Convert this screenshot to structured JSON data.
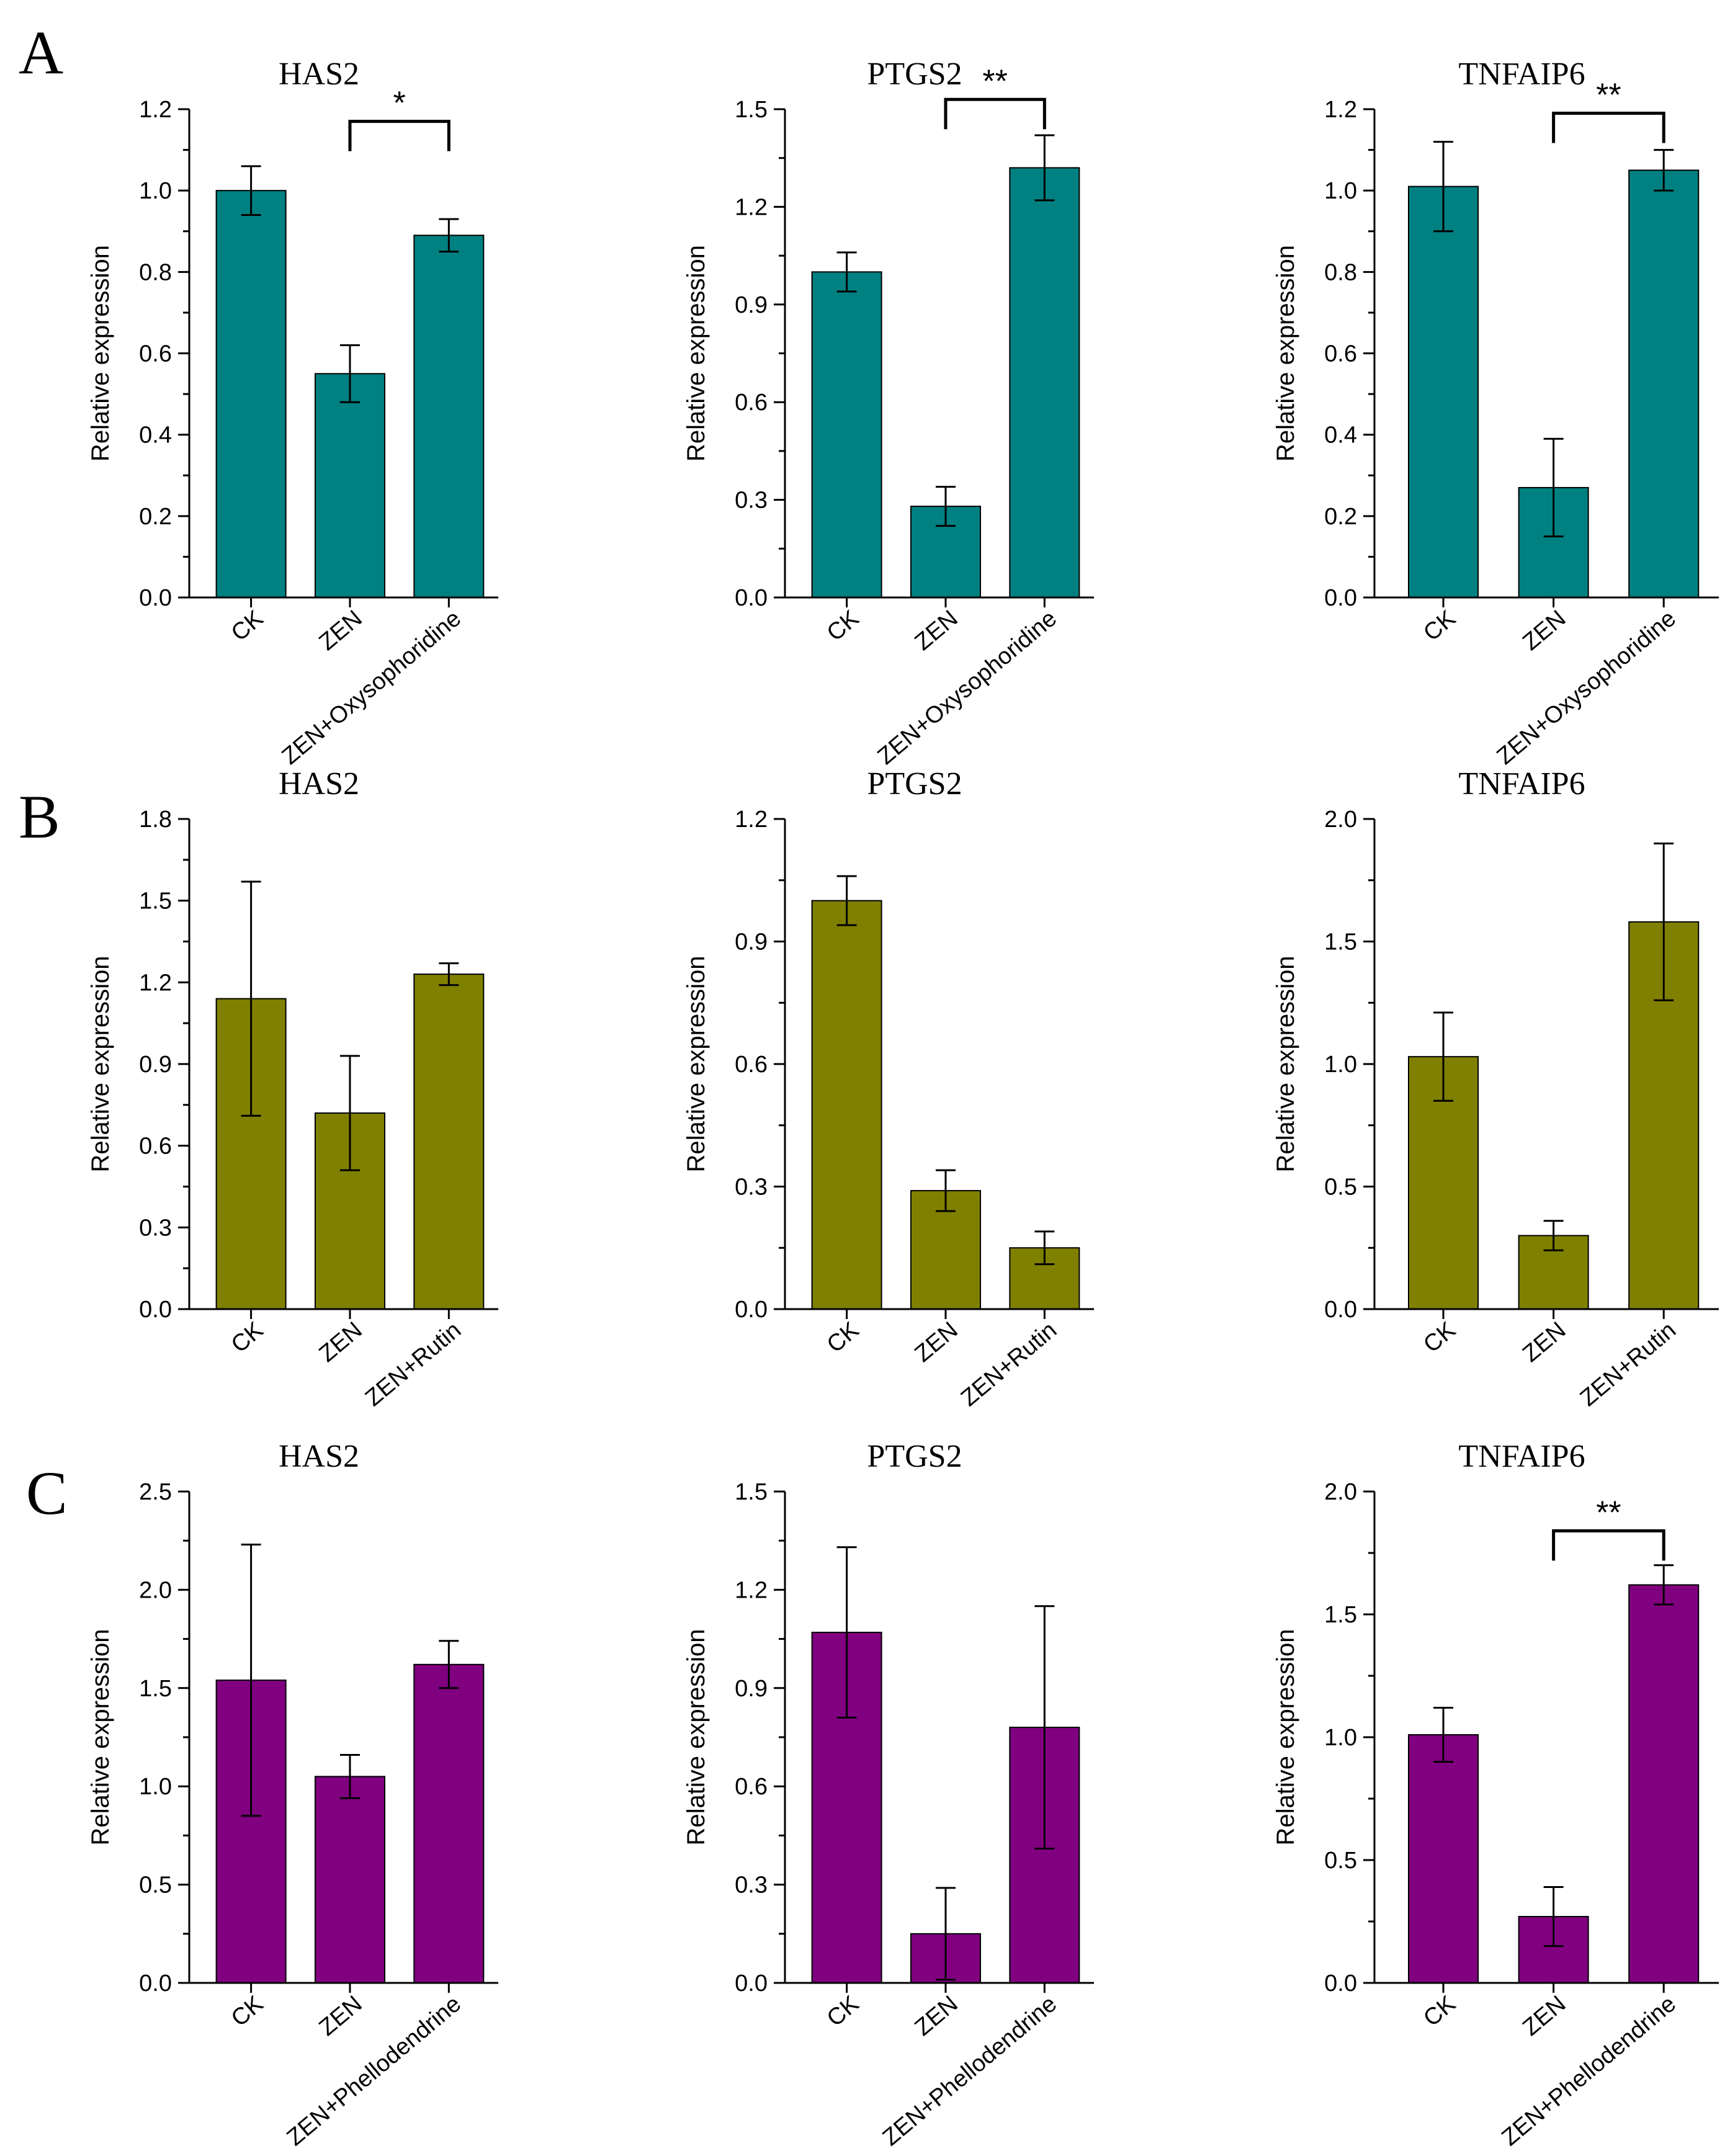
{
  "figure": {
    "panels": [
      {
        "label": "A",
        "color": "#008080"
      },
      {
        "label": "B",
        "color": "#808000"
      },
      {
        "label": "C",
        "color": "#800080"
      }
    ]
  },
  "chart_data": [
    {
      "type": "bar",
      "panel": "A",
      "title": "HAS2",
      "ylabel": "Relative expression",
      "categories": [
        "CK",
        "ZEN",
        "ZEN+Oxysophoridine"
      ],
      "values": [
        1.0,
        0.55,
        0.89
      ],
      "errors": [
        0.06,
        0.07,
        0.04
      ],
      "ylim": [
        0,
        1.2
      ],
      "yticks": [
        "0.0",
        "0.2",
        "0.4",
        "0.6",
        "0.8",
        "1.0",
        "1.2"
      ],
      "significance": {
        "from": 1,
        "to": 2,
        "label": "*",
        "level": 1.17
      }
    },
    {
      "type": "bar",
      "panel": "A",
      "title": "PTGS2",
      "ylabel": "Relative expression",
      "categories": [
        "CK",
        "ZEN",
        "ZEN+Oxysophoridine"
      ],
      "values": [
        1.0,
        0.28,
        1.32
      ],
      "errors": [
        0.06,
        0.06,
        0.1
      ],
      "ylim": [
        0,
        1.5
      ],
      "yticks": [
        "0.0",
        "0.3",
        "0.6",
        "0.9",
        "1.2",
        "1.5"
      ],
      "significance": {
        "from": 1,
        "to": 2,
        "label": "**",
        "level": 1.53
      }
    },
    {
      "type": "bar",
      "panel": "A",
      "title": "TNFAIP6",
      "ylabel": "Relative expression",
      "categories": [
        "CK",
        "ZEN",
        "ZEN+Oxysophoridine"
      ],
      "values": [
        1.01,
        0.27,
        1.05
      ],
      "errors": [
        0.11,
        0.12,
        0.05
      ],
      "ylim": [
        0,
        1.2
      ],
      "yticks": [
        "0.0",
        "0.2",
        "0.4",
        "0.6",
        "0.8",
        "1.0",
        "1.2"
      ],
      "significance": {
        "from": 1,
        "to": 2,
        "label": "**",
        "level": 1.19
      }
    },
    {
      "type": "bar",
      "panel": "B",
      "title": "HAS2",
      "ylabel": "Relative expression",
      "categories": [
        "CK",
        "ZEN",
        "ZEN+Rutin"
      ],
      "values": [
        1.14,
        0.72,
        1.23
      ],
      "errors": [
        0.43,
        0.21,
        0.04
      ],
      "ylim": [
        0,
        1.8
      ],
      "yticks": [
        "0.0",
        "0.3",
        "0.6",
        "0.9",
        "1.2",
        "1.5",
        "1.8"
      ]
    },
    {
      "type": "bar",
      "panel": "B",
      "title": "PTGS2",
      "ylabel": "Relative expression",
      "categories": [
        "CK",
        "ZEN",
        "ZEN+Rutin"
      ],
      "values": [
        1.0,
        0.29,
        0.15
      ],
      "errors": [
        0.06,
        0.05,
        0.04
      ],
      "ylim": [
        0,
        1.2
      ],
      "yticks": [
        "0.0",
        "0.3",
        "0.6",
        "0.9",
        "1.2"
      ]
    },
    {
      "type": "bar",
      "panel": "B",
      "title": "TNFAIP6",
      "ylabel": "Relative expression",
      "categories": [
        "CK",
        "ZEN",
        "ZEN+Rutin"
      ],
      "values": [
        1.03,
        0.3,
        1.58
      ],
      "errors": [
        0.18,
        0.06,
        0.32
      ],
      "ylim": [
        0,
        2.0
      ],
      "yticks": [
        "0.0",
        "0.5",
        "1.0",
        "1.5",
        "2.0"
      ]
    },
    {
      "type": "bar",
      "panel": "C",
      "title": "HAS2",
      "ylabel": "Relative expression",
      "categories": [
        "CK",
        "ZEN",
        "ZEN+Phellodendrine"
      ],
      "values": [
        1.54,
        1.05,
        1.62
      ],
      "errors": [
        0.69,
        0.11,
        0.12
      ],
      "ylim": [
        0,
        2.5
      ],
      "yticks": [
        "0.0",
        "0.5",
        "1.0",
        "1.5",
        "2.0",
        "2.5"
      ]
    },
    {
      "type": "bar",
      "panel": "C",
      "title": "PTGS2",
      "ylabel": "Relative expression",
      "categories": [
        "CK",
        "ZEN",
        "ZEN+Phellodendrine"
      ],
      "values": [
        1.07,
        0.15,
        0.78
      ],
      "errors": [
        0.26,
        0.14,
        0.37
      ],
      "ylim": [
        0,
        1.5
      ],
      "yticks": [
        "0.0",
        "0.3",
        "0.6",
        "0.9",
        "1.2",
        "1.5"
      ]
    },
    {
      "type": "bar",
      "panel": "C",
      "title": "TNFAIP6",
      "ylabel": "Relative expression",
      "categories": [
        "CK",
        "ZEN",
        "ZEN+Phellodendrine"
      ],
      "values": [
        1.01,
        0.27,
        1.62
      ],
      "errors": [
        0.11,
        0.12,
        0.08
      ],
      "ylim": [
        0,
        2.0
      ],
      "yticks": [
        "0.0",
        "0.5",
        "1.0",
        "1.5",
        "2.0"
      ],
      "significance": {
        "from": 1,
        "to": 2,
        "label": "**",
        "level": 1.84
      }
    }
  ]
}
